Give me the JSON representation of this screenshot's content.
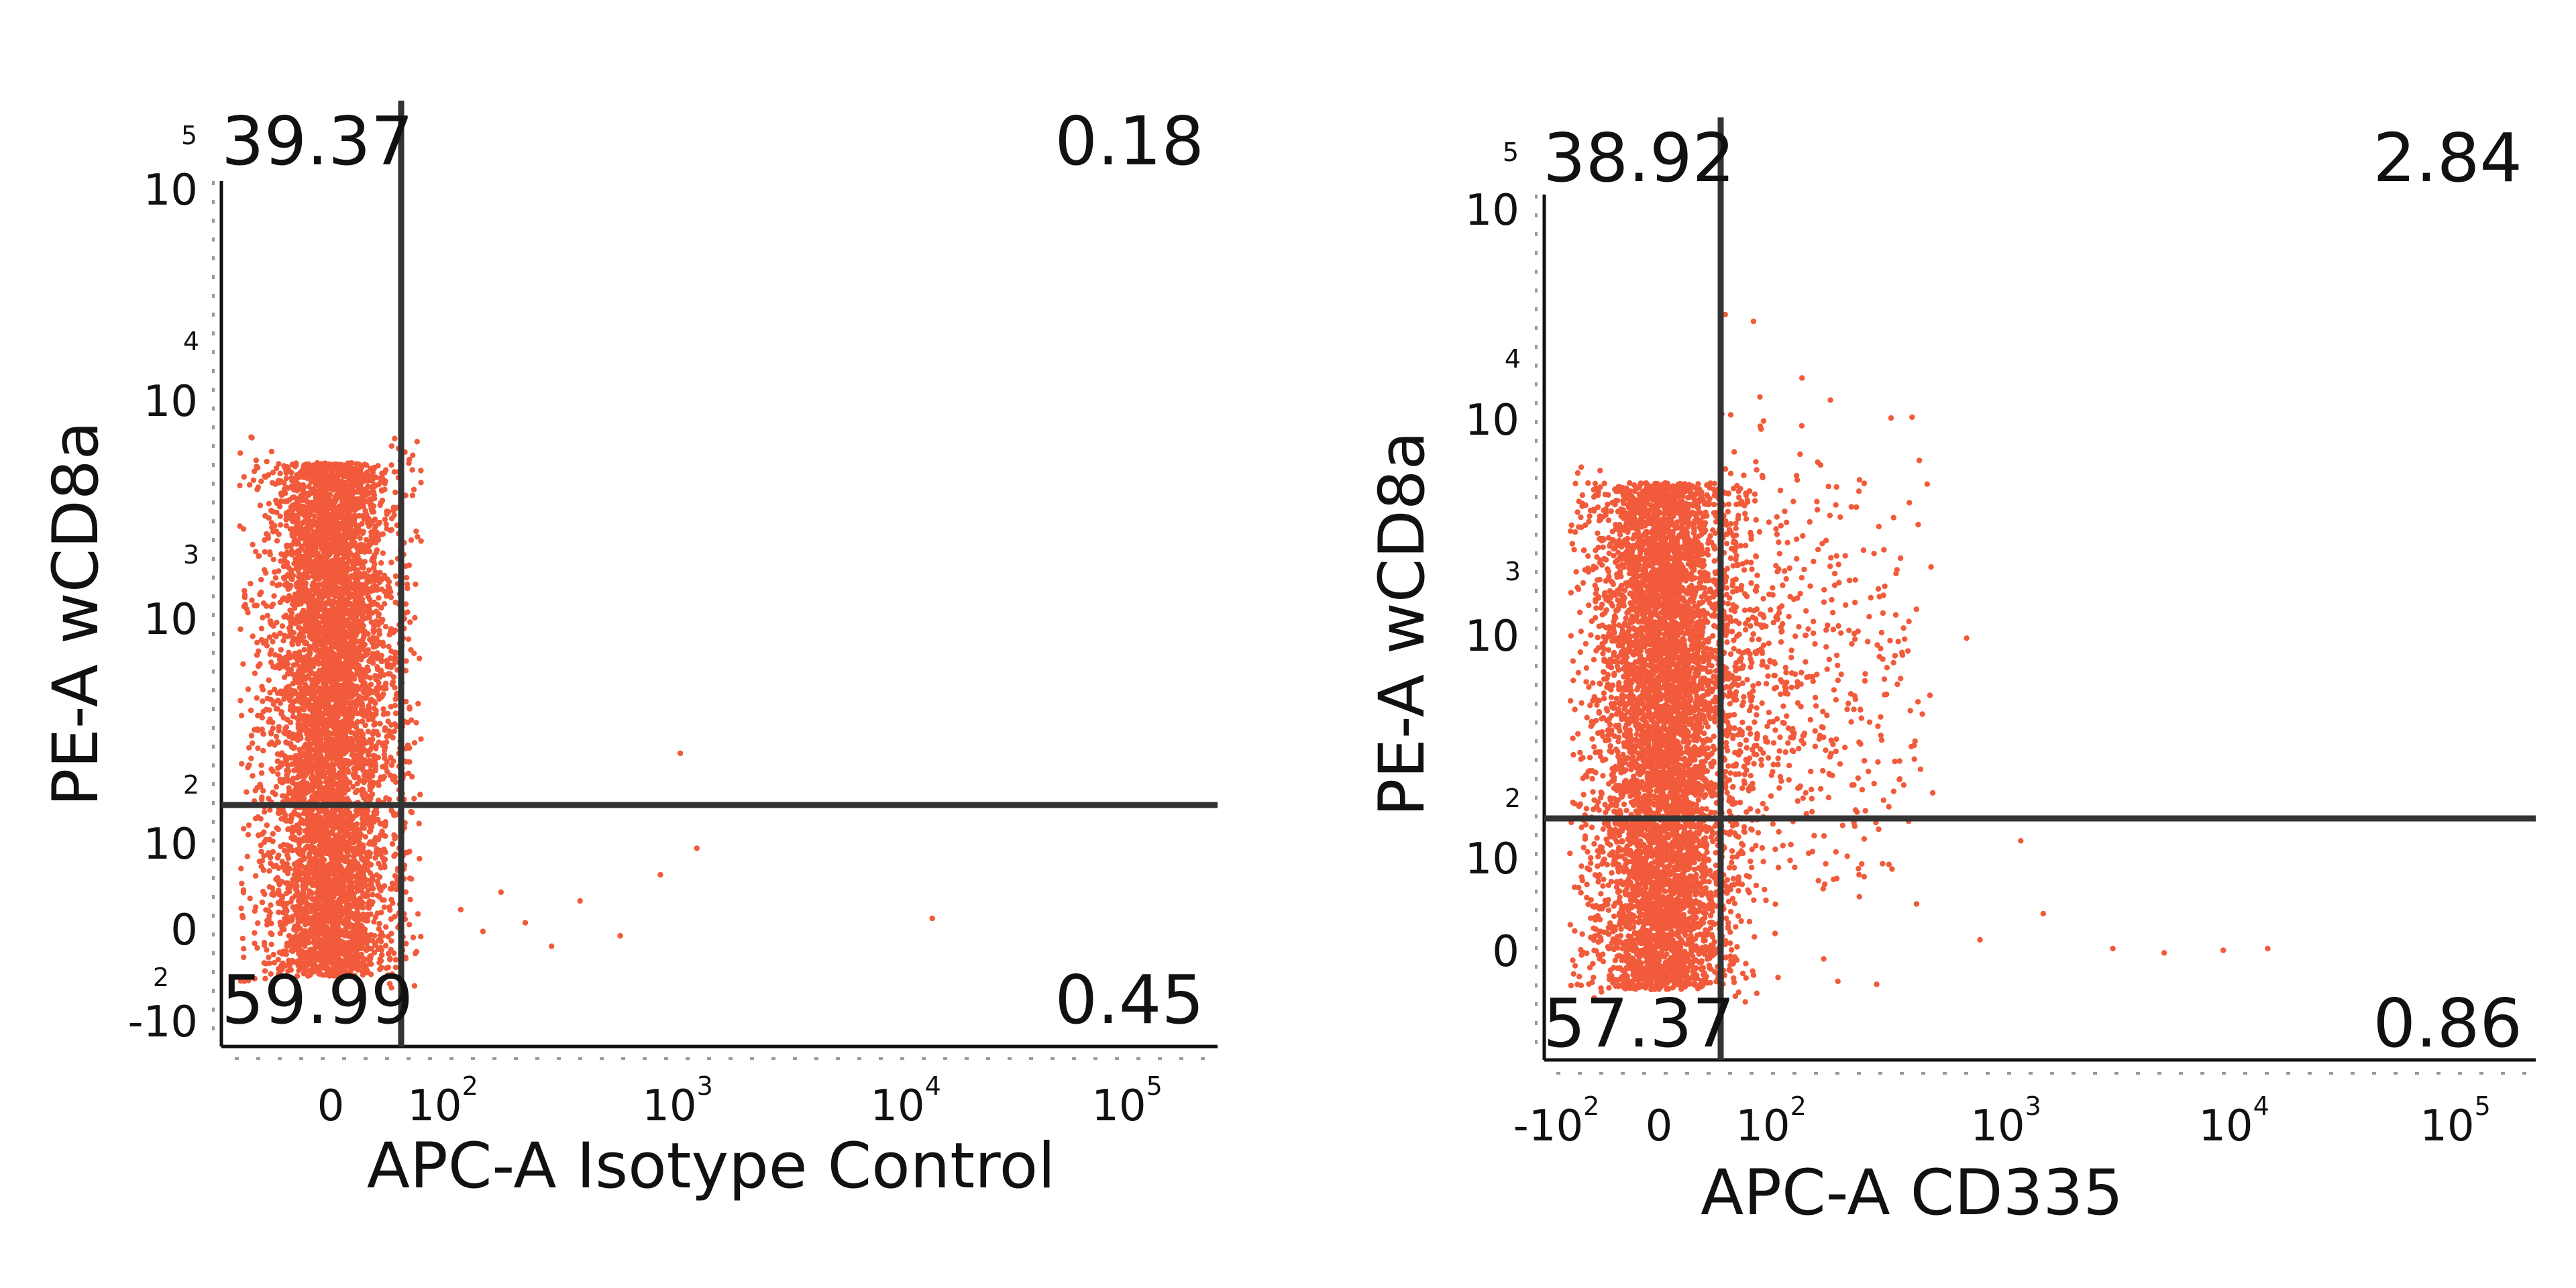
{
  "chart_data": [
    {
      "type": "scatter",
      "title": "",
      "xlabel": "APC-A Isotype Control",
      "ylabel": "PE-A wCD8a",
      "x_scale": "biexponential",
      "y_scale": "biexponential",
      "xlim": [
        -60,
        100000
      ],
      "ylim": [
        -10,
        100000
      ],
      "x_ticks": [
        {
          "base": "0",
          "exp": ""
        },
        {
          "base": "10",
          "exp": "2"
        },
        {
          "base": "10",
          "exp": "3"
        },
        {
          "base": "10",
          "exp": "4"
        },
        {
          "base": "10",
          "exp": "5"
        }
      ],
      "y_ticks": [
        {
          "base": "-10",
          "exp": "2"
        },
        {
          "base": "0",
          "exp": ""
        },
        {
          "base": "10",
          "exp": "2"
        },
        {
          "base": "10",
          "exp": "3"
        },
        {
          "base": "10",
          "exp": "4"
        },
        {
          "base": "10",
          "exp": "5"
        }
      ],
      "gate": {
        "x": 60,
        "y": 150
      },
      "quadrants": {
        "upper_left": "39.37",
        "upper_right": "0.18",
        "lower_left": "59.99",
        "lower_right": "0.45"
      },
      "point_color": "#f15a3a",
      "outliers": [
        {
          "x": 120,
          "y": 40
        },
        {
          "x": 150,
          "y": 15
        },
        {
          "x": 180,
          "y": 60
        },
        {
          "x": 230,
          "y": 25
        },
        {
          "x": 300,
          "y": -2
        },
        {
          "x": 400,
          "y": 50
        },
        {
          "x": 600,
          "y": 10
        },
        {
          "x": 900,
          "y": 80
        },
        {
          "x": 1100,
          "y": 300
        },
        {
          "x": 1300,
          "y": 110
        },
        {
          "x": 14000,
          "y": 30
        }
      ]
    },
    {
      "type": "scatter",
      "title": "",
      "xlabel": "APC-A CD335",
      "ylabel": "PE-A wCD8a",
      "x_scale": "biexponential",
      "y_scale": "biexponential",
      "xlim": [
        -150,
        100000
      ],
      "ylim": [
        -10,
        100000
      ],
      "x_ticks": [
        {
          "base": "-10",
          "exp": "2"
        },
        {
          "base": "0",
          "exp": ""
        },
        {
          "base": "10",
          "exp": "2"
        },
        {
          "base": "10",
          "exp": "3"
        },
        {
          "base": "10",
          "exp": "4"
        },
        {
          "base": "10",
          "exp": "5"
        }
      ],
      "y_ticks": [
        {
          "base": "0",
          "exp": ""
        },
        {
          "base": "10",
          "exp": "2"
        },
        {
          "base": "10",
          "exp": "3"
        },
        {
          "base": "10",
          "exp": "4"
        },
        {
          "base": "10",
          "exp": "5"
        }
      ],
      "gate": {
        "x": 60,
        "y": 150
      },
      "quadrants": {
        "upper_left": "38.92",
        "upper_right": "2.84",
        "lower_left": "57.37",
        "lower_right": "0.86"
      },
      "point_color": "#f15a3a",
      "outliers": [
        {
          "x": 800,
          "y": 30
        },
        {
          "x": 1200,
          "y": 150
        },
        {
          "x": 1500,
          "y": 60
        },
        {
          "x": 3000,
          "y": 20
        },
        {
          "x": 5000,
          "y": 15
        },
        {
          "x": 9000,
          "y": 18
        },
        {
          "x": 14000,
          "y": 20
        },
        {
          "x": 400,
          "y": 600
        },
        {
          "x": 700,
          "y": 1300
        },
        {
          "x": 500,
          "y": 250
        }
      ]
    }
  ]
}
